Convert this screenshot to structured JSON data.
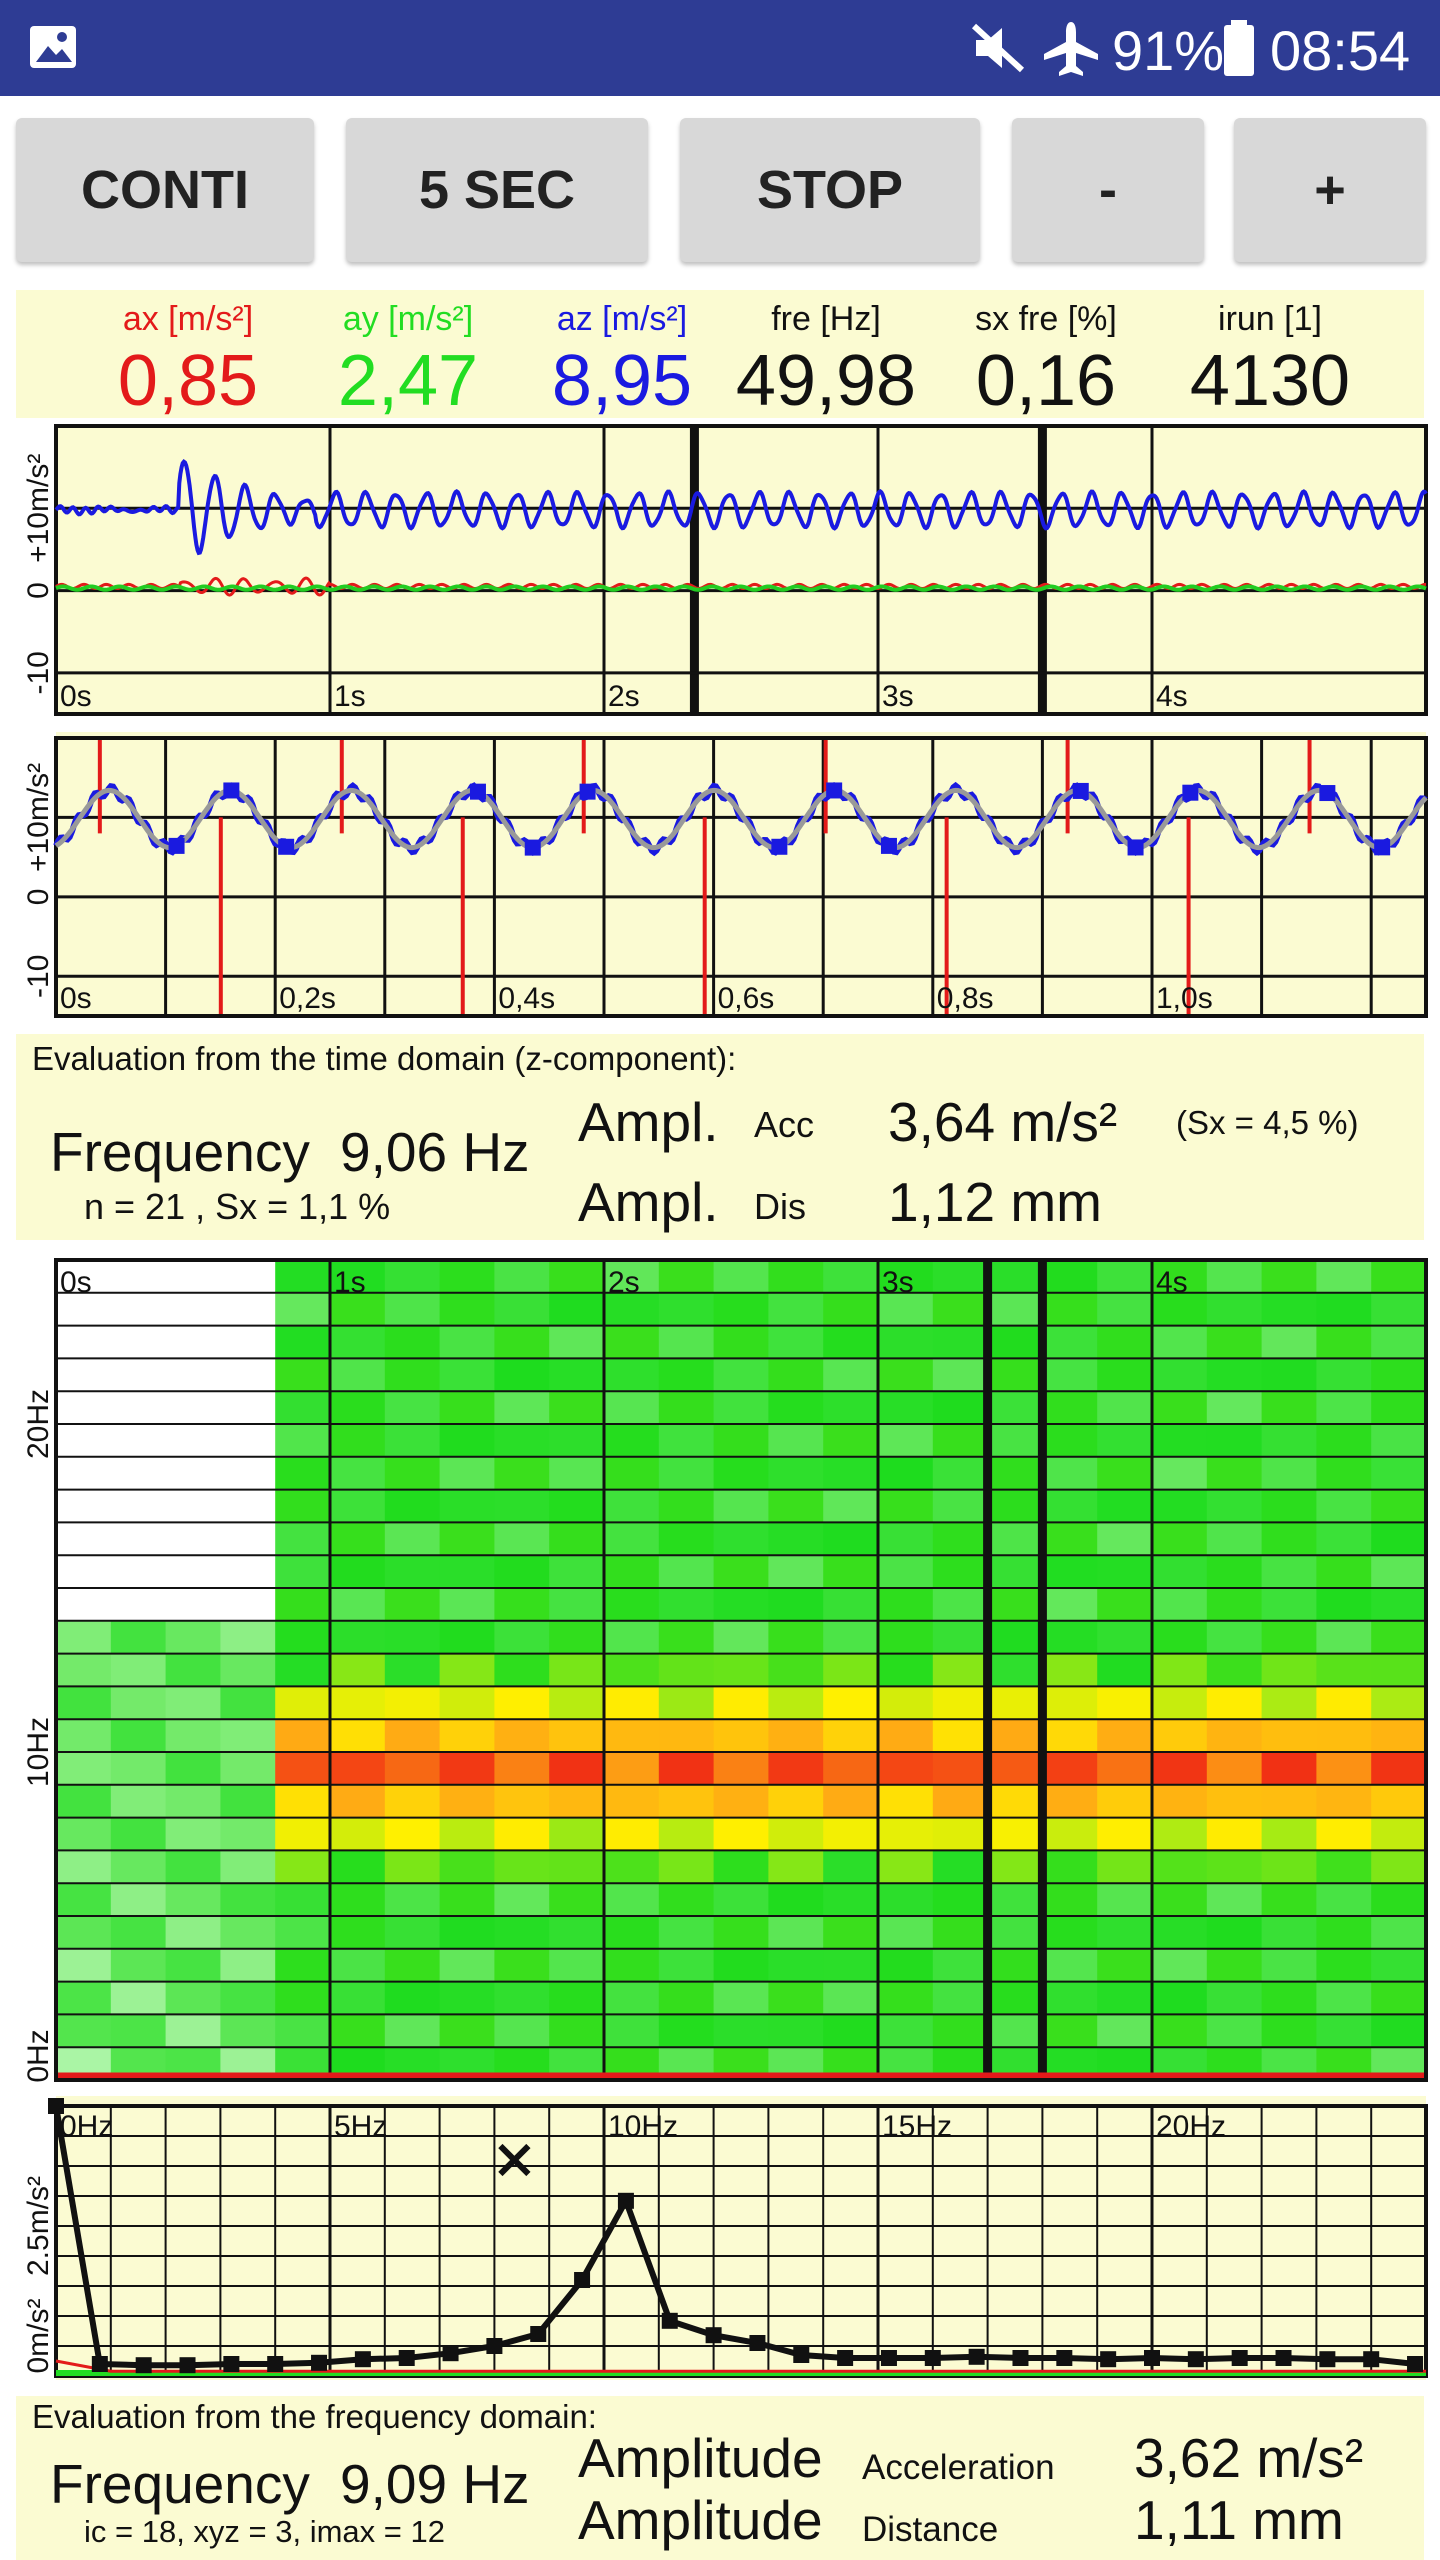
{
  "status_bar": {
    "battery": "91%",
    "time": "08:54",
    "icons": [
      "gallery-icon",
      "mute-icon",
      "airplane-mode-icon",
      "battery-icon"
    ]
  },
  "toolbar": {
    "buttons": [
      "CONTI",
      "5 SEC",
      "STOP",
      "-",
      "+"
    ]
  },
  "readouts": [
    {
      "label": "ax [m/s²]",
      "value": "0,85",
      "color": "#e31a1a"
    },
    {
      "label": "ay [m/s²]",
      "value": "2,47",
      "color": "#22dd22"
    },
    {
      "label": "az [m/s²]",
      "value": "8,95",
      "color": "#1a1ae0"
    },
    {
      "label": "fre [Hz]",
      "value": "49,98",
      "color": "#111111"
    },
    {
      "label": "sx fre [%]",
      "value": "0,16",
      "color": "#111111"
    },
    {
      "label": "irun [1]",
      "value": "4130",
      "color": "#111111"
    }
  ],
  "chart_data": [
    {
      "type": "line",
      "name": "time-signal",
      "ylabel": "+10m/s²",
      "y_ticks": [
        "-10",
        "0",
        "+10m/s²"
      ],
      "x_ticks": [
        "0s",
        "1s",
        "2s",
        "3s",
        "4s"
      ],
      "xlim": [
        0,
        5
      ],
      "ylim": [
        -15,
        20
      ],
      "series": [
        {
          "color": "#1a1ae0",
          "baseline": 9.8,
          "oscillation_hz": 9.06
        },
        {
          "color": "#e31a1a",
          "baseline": 0.5
        },
        {
          "color": "#22cc22",
          "baseline": 0.3
        }
      ]
    },
    {
      "type": "line",
      "name": "time-zoom",
      "y_ticks": [
        "-10",
        "0",
        "+10m/s²"
      ],
      "x_ticks": [
        "0s",
        "0,2s",
        "0,4s",
        "0,6s",
        "0,8s",
        "1,0s"
      ],
      "xlim": [
        0,
        1.25
      ],
      "ylim": [
        -15,
        20
      ]
    },
    {
      "type": "heatmap",
      "name": "spectrogram",
      "x_ticks": [
        "0s",
        "1s",
        "2s",
        "3s",
        "4s"
      ],
      "y_ticks": [
        "0Hz",
        "10Hz",
        "20Hz"
      ],
      "xlim": [
        0,
        5
      ],
      "ylim": [
        0,
        25
      ],
      "peak_hz": 9
    },
    {
      "type": "line",
      "name": "spectrum",
      "x_ticks": [
        "0Hz",
        "5Hz",
        "10Hz",
        "15Hz",
        "20Hz"
      ],
      "y_ticks": [
        "0m/s²",
        "2.5m/s²"
      ],
      "xlim": [
        0,
        25
      ],
      "ylim": [
        0,
        4.5
      ],
      "x": [
        0,
        0.8,
        1.6,
        2.4,
        3.2,
        4.0,
        4.8,
        5.6,
        6.4,
        7.2,
        8.0,
        8.8,
        9.6,
        10.4,
        11.2,
        12.0,
        12.8,
        13.6,
        14.4,
        15.2,
        16.0,
        16.8,
        17.6,
        18.4,
        19.2,
        20.0,
        20.8,
        21.6,
        22.4,
        23.2,
        24.0,
        24.8
      ],
      "y": [
        4.5,
        0.2,
        0.18,
        0.18,
        0.2,
        0.2,
        0.22,
        0.28,
        0.3,
        0.38,
        0.5,
        0.7,
        1.6,
        2.92,
        0.92,
        0.68,
        0.55,
        0.35,
        0.3,
        0.3,
        0.3,
        0.32,
        0.3,
        0.3,
        0.28,
        0.3,
        0.28,
        0.3,
        0.3,
        0.28,
        0.28,
        0.2
      ],
      "peak_marker": {
        "x": 8.0,
        "y": 3.6
      }
    }
  ],
  "time_eval": {
    "heading": "Evaluation from the time domain (z-component):",
    "freq_label": "Frequency",
    "freq_value": "9,06 Hz",
    "stats": "n = 21 , Sx =  1,1 %",
    "ampl_label": "Ampl.",
    "acc_label": "Acc",
    "acc_value": "3,64 m/s²",
    "sx_note": "(Sx =  4,5 %)",
    "dis_label": "Dis",
    "dis_value": "1,12 mm"
  },
  "freq_eval": {
    "heading": "Evaluation from the frequency domain:",
    "freq_label": "Frequency",
    "freq_value": "9,09 Hz",
    "stats": "ic = 18, xyz = 3, imax = 12",
    "amp_label": "Amplitude",
    "acc_label": "Acceleration",
    "acc_value": "3,62 m/s²",
    "dis_label": "Distance",
    "dis_value": "1,11 mm"
  }
}
